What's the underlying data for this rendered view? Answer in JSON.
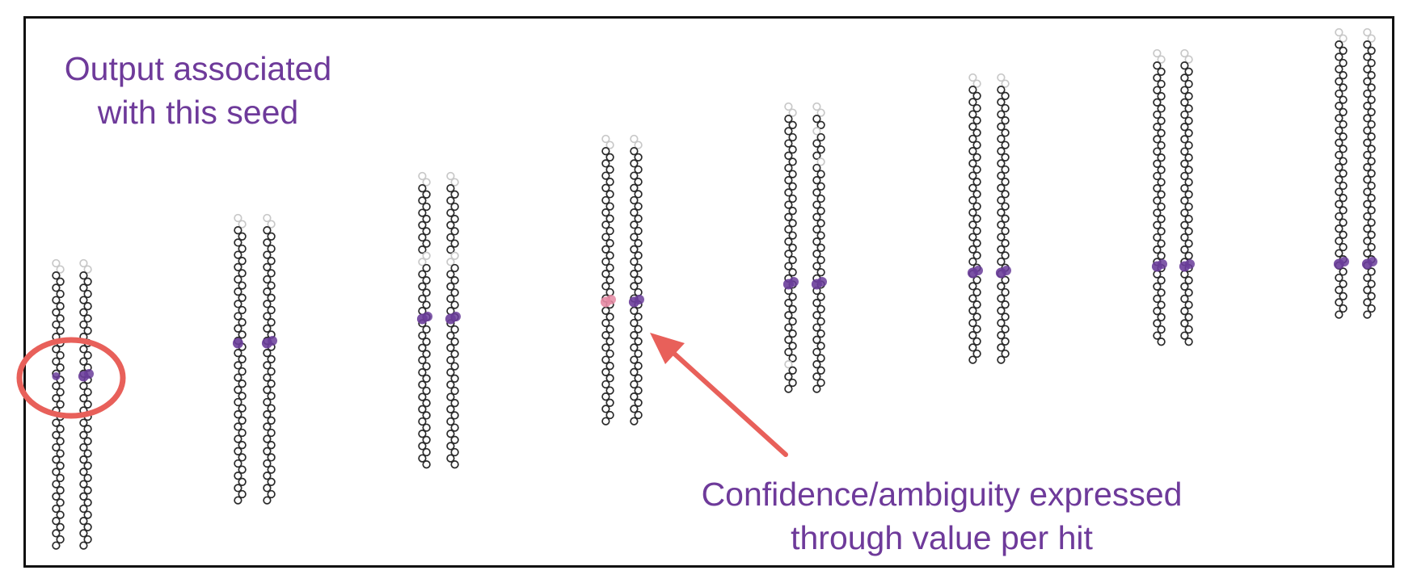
{
  "colors": {
    "frame": "#111111",
    "caption_text": "#6e3a9a",
    "chain_dark": "#2a2a2a",
    "chain_light": "#c8c8c8",
    "hit_purple": "#6a3d9a",
    "hit_pink": "#e58aa3",
    "highlight": "#e8605a"
  },
  "captions": {
    "seed": [
      "Output associated",
      "with this seed"
    ],
    "confidence": [
      "Confidence/ambiguity expressed",
      "through value per hit"
    ]
  },
  "icons": {
    "seed_marker": "circle-outline",
    "pointer": "arrow"
  }
}
